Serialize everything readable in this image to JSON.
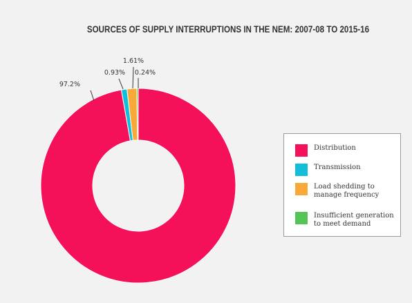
{
  "chart_data": {
    "type": "pie",
    "title": "SOURCES OF SUPPLY INTERRUPTIONS IN THE NEM: 2007-08 TO 2015-16",
    "donut": true,
    "categories": [
      "Distribution",
      "Transmission",
      "Load shedding to manage frequency",
      "Insufficient generation to meet demand"
    ],
    "legend_lines": [
      [
        "Distribution"
      ],
      [
        "Transmission"
      ],
      [
        "Load shedding to",
        "manage frequency"
      ],
      [
        "Insufficient generation",
        "to meet demand"
      ]
    ],
    "values": [
      97.2,
      0.93,
      1.61,
      0.24
    ],
    "value_labels": [
      "97.2%",
      "0.93%",
      "1.61%",
      "0.24%"
    ],
    "colors": [
      "#f5115a",
      "#12bfd8",
      "#f9a93a",
      "#54c454"
    ],
    "legend_position": "right"
  }
}
